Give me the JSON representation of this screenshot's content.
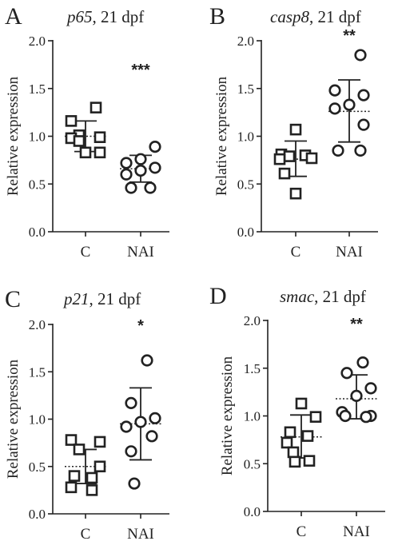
{
  "chart_data": [
    {
      "type": "scatter",
      "letter": "A",
      "gene": "p65",
      "title_suffix": ", 21 dpf",
      "ylabel": "Relative expression",
      "ylim": [
        0,
        2.0
      ],
      "yticks": [
        "0.0",
        "0.5",
        "1.0",
        "1.5",
        "2.0"
      ],
      "categories": [
        "C",
        "NAI"
      ],
      "significance": "***",
      "groups": [
        {
          "category": "C",
          "marker": "square",
          "mean": 1.0,
          "sd_low": 0.84,
          "sd_high": 1.16,
          "values": [
            1.3,
            1.16,
            1.01,
            0.99,
            0.98,
            0.95,
            0.83,
            0.83
          ]
        },
        {
          "category": "NAI",
          "marker": "circle",
          "mean": 0.66,
          "sd_low": 0.52,
          "sd_high": 0.8,
          "values": [
            0.89,
            0.76,
            0.72,
            0.67,
            0.64,
            0.6,
            0.46,
            0.46
          ]
        }
      ]
    },
    {
      "type": "scatter",
      "letter": "B",
      "gene": "casp8",
      "title_suffix": ", 21 dpf",
      "ylabel": "Relative expression",
      "ylim": [
        0,
        2.0
      ],
      "yticks": [
        "0.0",
        "0.5",
        "1.0",
        "1.5",
        "2.0"
      ],
      "categories": [
        "C",
        "NAI"
      ],
      "significance": "**",
      "groups": [
        {
          "category": "C",
          "marker": "square",
          "mean": 0.76,
          "sd_low": 0.58,
          "sd_high": 0.95,
          "values": [
            1.07,
            0.81,
            0.8,
            0.79,
            0.77,
            0.76,
            0.61,
            0.4
          ]
        },
        {
          "category": "NAI",
          "marker": "circle",
          "mean": 1.26,
          "sd_low": 0.94,
          "sd_high": 1.59,
          "values": [
            1.85,
            1.48,
            1.43,
            1.33,
            1.29,
            1.12,
            0.85,
            0.85
          ]
        }
      ]
    },
    {
      "type": "scatter",
      "letter": "C",
      "gene": "p21",
      "title_suffix": ", 21 dpf",
      "ylabel": "Relative expression",
      "ylim": [
        0,
        2.0
      ],
      "yticks": [
        "0.0",
        "0.5",
        "1.0",
        "1.5",
        "2.0"
      ],
      "categories": [
        "C",
        "NAI"
      ],
      "significance": "*",
      "groups": [
        {
          "category": "C",
          "marker": "square",
          "mean": 0.5,
          "sd_low": 0.32,
          "sd_high": 0.68,
          "values": [
            0.78,
            0.76,
            0.68,
            0.5,
            0.4,
            0.38,
            0.28,
            0.25
          ]
        },
        {
          "category": "NAI",
          "marker": "circle",
          "mean": 0.95,
          "sd_low": 0.57,
          "sd_high": 1.33,
          "values": [
            1.62,
            1.17,
            1.01,
            0.97,
            0.92,
            0.82,
            0.66,
            0.32
          ]
        }
      ]
    },
    {
      "type": "scatter",
      "letter": "D",
      "gene": "smac",
      "title_suffix": ", 21 dpf",
      "ylabel": "Relative expression",
      "ylim": [
        0,
        2.0
      ],
      "yticks": [
        "0.0",
        "0.5",
        "1.0",
        "1.5",
        "2.0"
      ],
      "categories": [
        "C",
        "NAI"
      ],
      "significance": "**",
      "groups": [
        {
          "category": "C",
          "marker": "square",
          "mean": 0.78,
          "sd_low": 0.56,
          "sd_high": 1.01,
          "values": [
            1.13,
            0.99,
            0.83,
            0.79,
            0.72,
            0.62,
            0.53,
            0.52
          ]
        },
        {
          "category": "NAI",
          "marker": "circle",
          "mean": 1.18,
          "sd_low": 0.97,
          "sd_high": 1.43,
          "values": [
            1.56,
            1.45,
            1.29,
            1.21,
            1.04,
            1.0,
            1.0,
            0.99
          ]
        }
      ]
    }
  ]
}
